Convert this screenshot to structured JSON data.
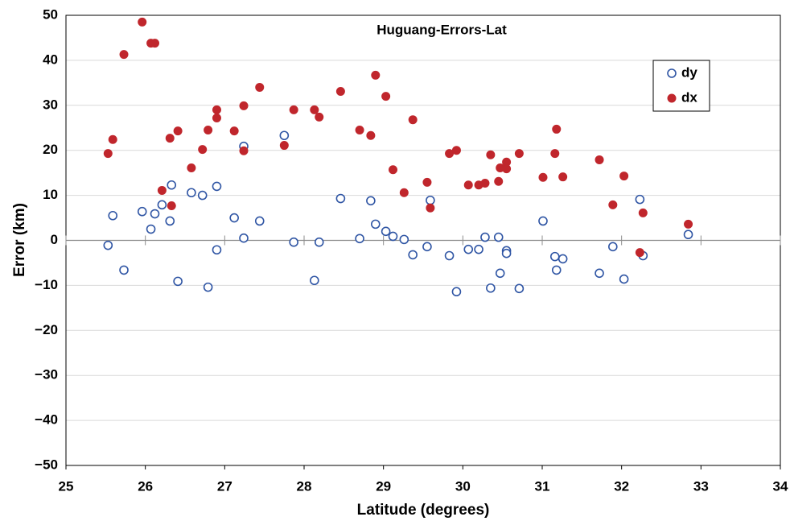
{
  "chart_data": {
    "type": "scatter",
    "title": "Huguang-Errors-Lat",
    "xlabel": "Latitude (degrees)",
    "ylabel": "Error (km)",
    "xlim": [
      25,
      34
    ],
    "xticks": [
      25,
      26,
      27,
      28,
      29,
      30,
      31,
      32,
      33,
      34
    ],
    "ylim": [
      -50,
      50
    ],
    "yticks": [
      {
        "value": -50,
        "label": "−50"
      },
      {
        "value": -40,
        "label": "−40"
      },
      {
        "value": -30,
        "label": "−30"
      },
      {
        "value": -20,
        "label": "−20"
      },
      {
        "value": -10,
        "label": "−10"
      },
      0,
      10,
      20,
      30,
      40,
      50
    ],
    "grid": true,
    "legend": "upper right",
    "x": [
      25.53,
      25.59,
      25.73,
      25.96,
      26.07,
      26.12,
      26.21,
      26.31,
      26.33,
      26.41,
      26.58,
      26.72,
      26.79,
      26.9,
      26.9,
      27.12,
      27.24,
      27.24,
      27.44,
      27.75,
      27.87,
      28.13,
      28.19,
      28.46,
      28.7,
      28.84,
      28.9,
      29.03,
      29.12,
      29.26,
      29.37,
      29.55,
      29.59,
      29.83,
      29.92,
      30.07,
      30.2,
      30.28,
      30.35,
      30.45,
      30.47,
      30.55,
      30.55,
      30.71,
      31.01,
      31.16,
      31.18,
      31.26,
      31.72,
      31.89,
      32.03,
      32.23,
      32.27,
      32.84
    ],
    "series": [
      {
        "name": "dy",
        "color": "#2f55a4",
        "marker": "hollow",
        "values": [
          -1.1,
          5.5,
          -6.6,
          6.4,
          2.5,
          5.9,
          7.9,
          4.3,
          12.3,
          -9.1,
          10.6,
          10.0,
          -10.4,
          12.0,
          -2.1,
          5.0,
          20.9,
          0.5,
          4.3,
          23.3,
          -0.4,
          -8.9,
          -0.4,
          9.3,
          0.4,
          8.8,
          3.6,
          2.0,
          0.9,
          0.2,
          -3.2,
          -1.4,
          8.9,
          -3.4,
          -11.4,
          -2.0,
          -2.0,
          0.7,
          -10.6,
          0.7,
          -7.3,
          -2.3,
          -2.9,
          -10.7,
          4.3,
          -3.6,
          -6.6,
          -4.1,
          -7.3,
          -1.4,
          -8.6,
          9.1,
          -3.4,
          1.3
        ]
      },
      {
        "name": "dx",
        "color": "#c0262c",
        "marker": "filled",
        "values": [
          19.3,
          22.4,
          41.3,
          48.5,
          43.8,
          43.8,
          11.1,
          22.7,
          7.7,
          24.3,
          16.1,
          20.2,
          24.5,
          29.0,
          27.2,
          24.3,
          29.9,
          19.9,
          34.0,
          21.1,
          29.0,
          29.0,
          27.4,
          33.1,
          24.5,
          23.3,
          36.7,
          32.0,
          15.7,
          10.6,
          26.8,
          12.9,
          7.2,
          19.3,
          20.0,
          12.3,
          12.3,
          12.7,
          19.0,
          13.1,
          16.1,
          17.4,
          15.9,
          19.3,
          14.0,
          19.3,
          24.7,
          14.1,
          17.9,
          7.9,
          14.3,
          -2.7,
          6.1,
          3.6
        ]
      }
    ]
  }
}
